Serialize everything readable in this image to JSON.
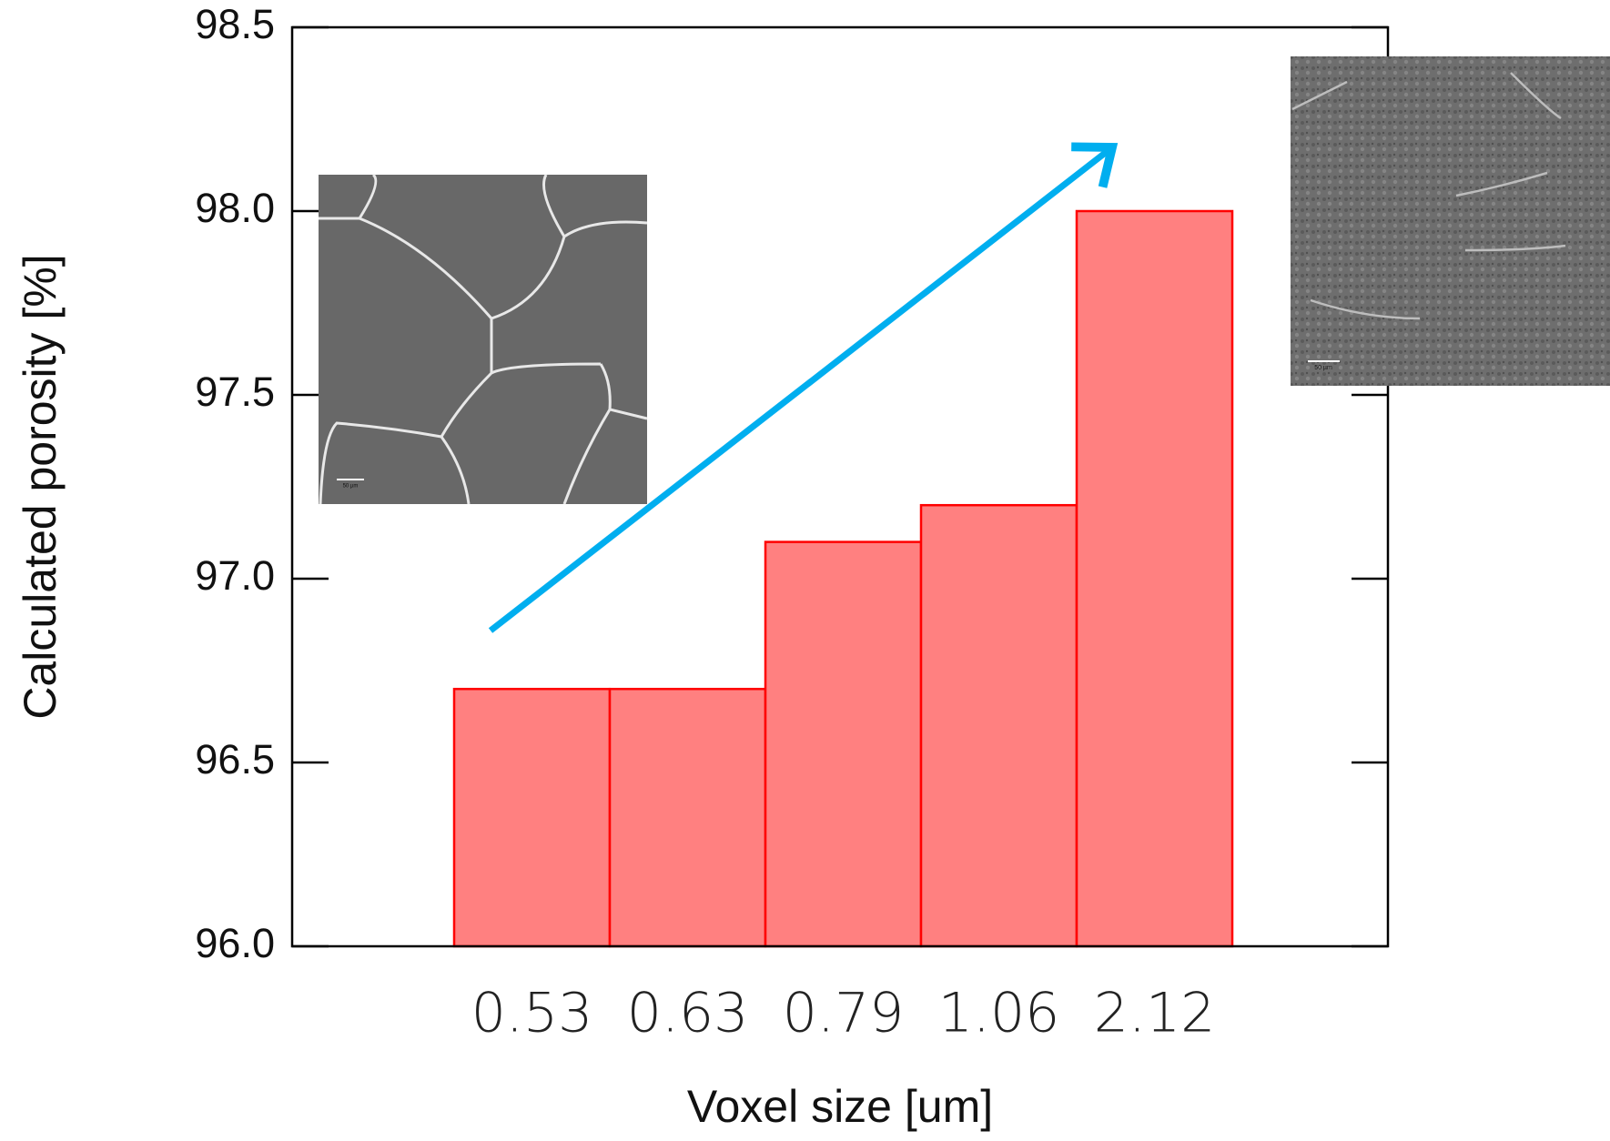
{
  "chart_data": {
    "type": "bar",
    "y_label": "Calculated porosity [%]",
    "x_label": "Voxel size [um]",
    "categories": [
      "0.53",
      "0.63",
      "0.79",
      "1.06",
      "2.12"
    ],
    "values": [
      96.7,
      96.7,
      97.1,
      97.2,
      98.0
    ],
    "color": "#ff8080",
    "edge_color": "#ff0000",
    "ylim": [
      96,
      98.5
    ],
    "yticks": [
      {
        "value": 96,
        "label": "96.0"
      },
      96.5,
      {
        "value": 97,
        "label": "97.0"
      },
      97.5,
      {
        "value": 98,
        "label": "98.0"
      },
      98.5
    ],
    "grid": false,
    "inset_labels": [
      "50 µm",
      "50 µm"
    ]
  }
}
